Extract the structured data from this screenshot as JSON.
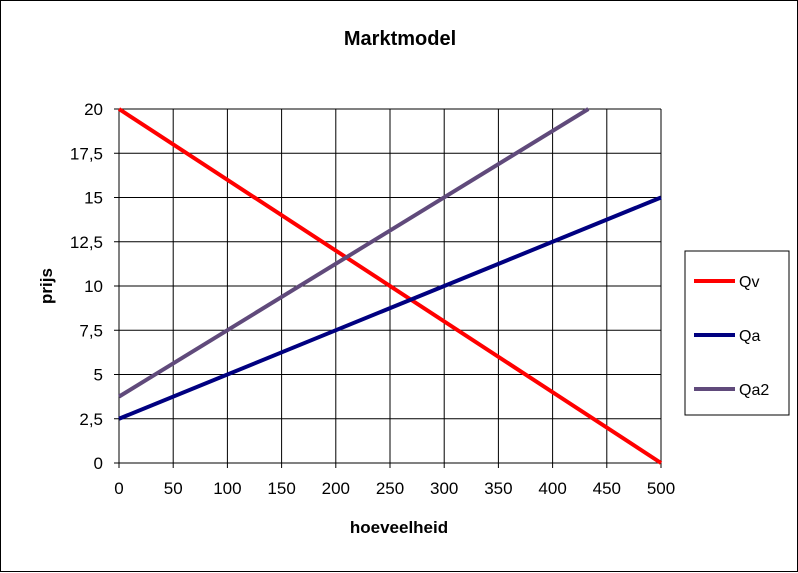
{
  "chart_data": {
    "type": "line",
    "title": "Marktmodel",
    "xlabel": "hoeveelheid",
    "ylabel": "prijs",
    "xlim": [
      0,
      500
    ],
    "ylim": [
      0,
      20
    ],
    "x_ticks": [
      "0",
      "50",
      "100",
      "150",
      "200",
      "250",
      "300",
      "350",
      "400",
      "450",
      "500"
    ],
    "y_ticks": [
      "0",
      "2,5",
      "5",
      "7,5",
      "10",
      "12,5",
      "15",
      "17,5",
      "20"
    ],
    "grid": true,
    "legend_position": "right",
    "series": [
      {
        "name": "Qv",
        "color": "#ff0000",
        "points": [
          [
            0,
            20
          ],
          [
            500,
            0
          ]
        ]
      },
      {
        "name": "Qa",
        "color": "#000080",
        "points": [
          [
            0,
            2.5
          ],
          [
            500,
            15
          ]
        ]
      },
      {
        "name": "Qa2",
        "color": "#604a7b",
        "points": [
          [
            0,
            3.75
          ],
          [
            433,
            20
          ]
        ]
      }
    ]
  }
}
